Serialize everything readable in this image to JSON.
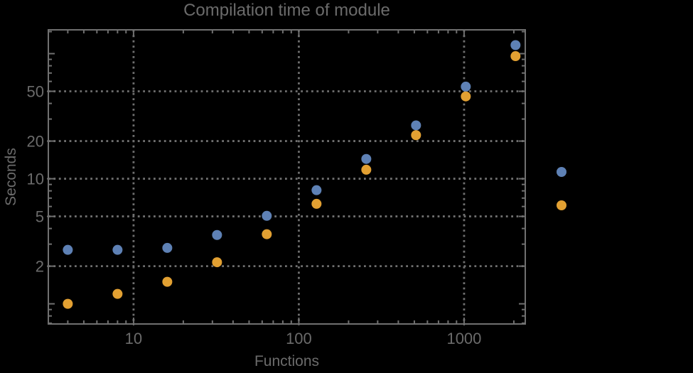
{
  "chart_data": {
    "type": "scatter",
    "title": "Compilation time of module",
    "xlabel": "Functions",
    "ylabel": "Seconds",
    "x_scale": "log",
    "y_scale": "log",
    "x_range": [
      3.05,
      2345
    ],
    "y_range": [
      0.69,
      155
    ],
    "grid": true,
    "x": [
      4,
      8,
      16,
      32,
      64,
      128,
      256,
      512,
      1024,
      2048
    ],
    "series": [
      {
        "name": "blue",
        "color": "#5E81B5",
        "values": [
          2.7,
          2.7,
          2.8,
          3.55,
          5.05,
          8.1,
          14.4,
          26.7,
          54.5,
          117
        ]
      },
      {
        "name": "orange",
        "color": "#E2A032",
        "values": [
          1.0,
          1.2,
          1.5,
          2.15,
          3.6,
          6.3,
          11.8,
          22.3,
          45.5,
          95.5
        ]
      }
    ],
    "x_ticks": {
      "major": [
        10,
        100,
        1000
      ],
      "major_labels": [
        "10",
        "100",
        "1000"
      ],
      "minor": [
        4,
        5,
        6,
        7,
        8,
        9,
        20,
        30,
        40,
        50,
        60,
        70,
        80,
        90,
        200,
        300,
        400,
        500,
        600,
        700,
        800,
        900,
        2000
      ]
    },
    "y_ticks": {
      "major": [
        2,
        5,
        10,
        20,
        50
      ],
      "major_labels": [
        "2",
        "5",
        "10",
        "20",
        "50"
      ],
      "major_unlabeled": [
        1,
        100
      ],
      "minor": [
        0.7,
        0.8,
        0.9,
        3,
        4,
        6,
        7,
        8,
        9,
        30,
        40,
        60,
        70,
        80,
        90,
        150
      ]
    },
    "gridlines": {
      "x": [
        10,
        100,
        1000
      ],
      "y": [
        2,
        5,
        10,
        20,
        50
      ],
      "style": "dotted"
    },
    "legend": {
      "position": "right-outside",
      "entries": [
        {
          "marker": "disk",
          "color": "#5E81B5",
          "label": ""
        },
        {
          "marker": "disk",
          "color": "#E2A032",
          "label": ""
        }
      ]
    },
    "colors": {
      "background": "#000000",
      "text": "#6B6B6B",
      "frame": "#707070",
      "grid": "#6F6F6F"
    }
  }
}
